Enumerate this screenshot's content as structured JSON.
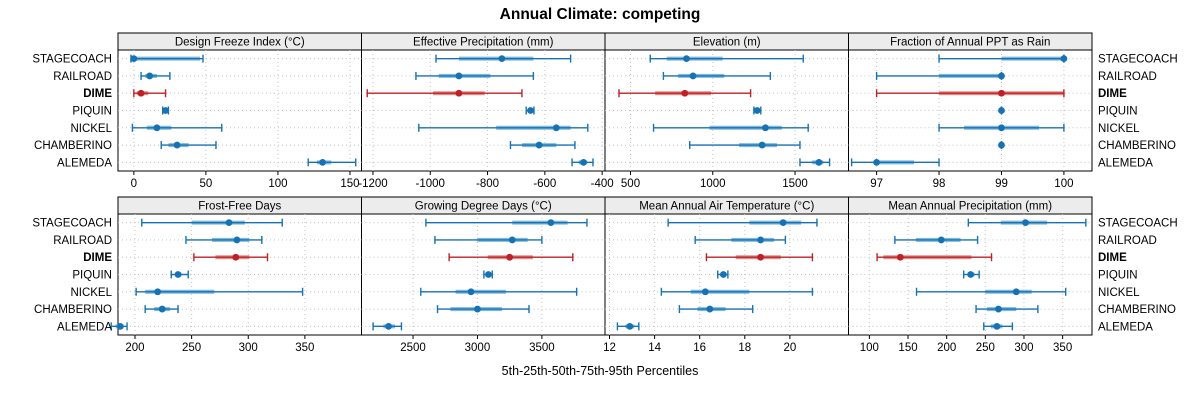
{
  "title": "Annual Climate: competing",
  "caption": "5th-25th-50th-75th-95th Percentiles",
  "categories": [
    "STAGECOACH",
    "RAILROAD",
    "DIME",
    "PIQUIN",
    "NICKEL",
    "CHAMBERINO",
    "ALEMEDA"
  ],
  "highlight_category": "DIME",
  "colors": {
    "blue": "#1672b2",
    "blue_band": "#7fb8dd",
    "red": "#bf2026",
    "red_band": "#dd9089",
    "grid": "#c3c3c3",
    "header_bg": "#ececec",
    "border": "#000000",
    "text": "#000000"
  },
  "chart_data": {
    "type": "dotplot-percentiles",
    "percentiles": [
      5,
      25,
      50,
      75,
      95
    ],
    "layout": {
      "rows": 2,
      "cols": 4,
      "legend": "none",
      "grid": "dotted"
    },
    "panels": [
      {
        "title": "Design Freeze Index (°C)",
        "row": 0,
        "col": 0,
        "xlim": [
          -11,
          158
        ],
        "ticks": [
          0,
          50,
          100,
          150
        ],
        "values": [
          [
            -2,
            0,
            0,
            46,
            48
          ],
          [
            5,
            8,
            11,
            16,
            25
          ],
          [
            0,
            2,
            5,
            10,
            22
          ],
          [
            20,
            21,
            22,
            23,
            24
          ],
          [
            -1,
            9,
            16,
            26,
            61
          ],
          [
            19,
            24,
            30,
            38,
            57
          ],
          [
            121,
            127,
            131,
            137,
            154
          ]
        ]
      },
      {
        "title": "Effective Precipitation (mm)",
        "row": 0,
        "col": 1,
        "xlim": [
          -1240,
          -390
        ],
        "ticks": [
          -1200,
          -1000,
          -800,
          -600,
          -400
        ],
        "values": [
          [
            -980,
            -900,
            -750,
            -640,
            -510
          ],
          [
            -1050,
            -970,
            -900,
            -790,
            -640
          ],
          [
            -1220,
            -990,
            -900,
            -810,
            -680
          ],
          [
            -665,
            -658,
            -650,
            -645,
            -638
          ],
          [
            -1040,
            -770,
            -560,
            -510,
            -450
          ],
          [
            -720,
            -680,
            -620,
            -560,
            -495
          ],
          [
            -505,
            -482,
            -465,
            -452,
            -432
          ]
        ]
      },
      {
        "title": "Elevation (m)",
        "row": 0,
        "col": 2,
        "xlim": [
          345,
          1825
        ],
        "ticks": [
          500,
          1000,
          1500
        ],
        "values": [
          [
            620,
            720,
            840,
            1060,
            1550
          ],
          [
            700,
            790,
            880,
            1070,
            1350
          ],
          [
            430,
            650,
            830,
            990,
            1230
          ],
          [
            1250,
            1262,
            1270,
            1280,
            1292
          ],
          [
            640,
            980,
            1320,
            1420,
            1580
          ],
          [
            860,
            1160,
            1300,
            1390,
            1530
          ],
          [
            1530,
            1605,
            1645,
            1672,
            1710
          ]
        ]
      },
      {
        "title": "Fraction of Annual PPT as Rain",
        "row": 0,
        "col": 3,
        "xlim": [
          96.55,
          100.45
        ],
        "ticks": [
          97,
          98,
          99,
          100
        ],
        "values": [
          [
            98,
            99,
            100,
            100,
            100
          ],
          [
            97,
            98,
            99,
            99,
            99
          ],
          [
            97,
            98,
            99,
            100,
            100
          ],
          [
            99,
            99,
            99,
            99,
            99
          ],
          [
            98,
            98.4,
            99,
            99.6,
            100
          ],
          [
            99,
            99,
            99,
            99,
            99
          ],
          [
            96.6,
            97,
            97,
            97.6,
            98
          ]
        ]
      },
      {
        "title": "Frost-Free Days",
        "row": 1,
        "col": 0,
        "xlim": [
          185,
          400
        ],
        "ticks": [
          200,
          250,
          300,
          350
        ],
        "values": [
          [
            206,
            250,
            283,
            297,
            330
          ],
          [
            245,
            268,
            290,
            301,
            312
          ],
          [
            252,
            271,
            289,
            301,
            317
          ],
          [
            232,
            236,
            238,
            241,
            247
          ],
          [
            201,
            209,
            220,
            270,
            348
          ],
          [
            209,
            217,
            224,
            231,
            238
          ],
          [
            179,
            183,
            187,
            190,
            193
          ]
        ]
      },
      {
        "title": "Growing Degree Days (°C)",
        "row": 1,
        "col": 1,
        "xlim": [
          2100,
          3990
        ],
        "ticks": [
          2500,
          3000,
          3500
        ],
        "values": [
          [
            2600,
            3270,
            3570,
            3700,
            3850
          ],
          [
            2670,
            3000,
            3270,
            3390,
            3500
          ],
          [
            2780,
            3080,
            3250,
            3430,
            3740
          ],
          [
            3050,
            3070,
            3085,
            3100,
            3115
          ],
          [
            2560,
            2830,
            2950,
            3220,
            3770
          ],
          [
            2690,
            2790,
            3000,
            3190,
            3400
          ],
          [
            2190,
            2270,
            2310,
            2360,
            2410
          ]
        ]
      },
      {
        "title": "Mean Annual Air Temperature (°C)",
        "row": 1,
        "col": 2,
        "xlim": [
          11.8,
          22.6
        ],
        "ticks": [
          12,
          14,
          16,
          18,
          20
        ],
        "values": [
          [
            14.6,
            18.2,
            19.7,
            20.5,
            21.2
          ],
          [
            15.8,
            17.4,
            18.7,
            19.3,
            19.8
          ],
          [
            16.3,
            17.6,
            18.7,
            19.6,
            21.0
          ],
          [
            16.8,
            16.95,
            17.05,
            17.15,
            17.25
          ],
          [
            14.3,
            15.6,
            16.25,
            18.2,
            21.0
          ],
          [
            15.1,
            15.9,
            16.45,
            17.15,
            18.35
          ],
          [
            12.35,
            12.7,
            12.9,
            13.1,
            13.3
          ]
        ]
      },
      {
        "title": "Mean Annual Precipitation (mm)",
        "row": 1,
        "col": 3,
        "xlim": [
          73,
          388
        ],
        "ticks": [
          100,
          150,
          200,
          250,
          300,
          350
        ],
        "values": [
          [
            228,
            270,
            302,
            330,
            380
          ],
          [
            133,
            160,
            193,
            218,
            240
          ],
          [
            110,
            118,
            140,
            232,
            258
          ],
          [
            222,
            227,
            231,
            236,
            242
          ],
          [
            161,
            250,
            290,
            310,
            354
          ],
          [
            238,
            252,
            267,
            290,
            318
          ],
          [
            248,
            257,
            265,
            272,
            285
          ]
        ]
      }
    ]
  }
}
